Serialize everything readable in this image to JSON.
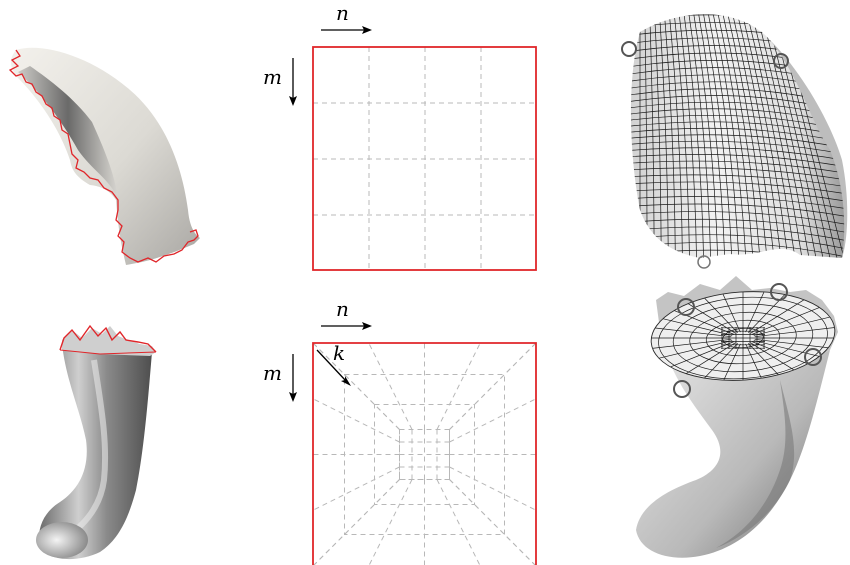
{
  "row_top": {
    "axis_labels": {
      "n": "n",
      "m": "m"
    },
    "grid_divisions": {
      "rows": 4,
      "cols": 4
    },
    "colors": {
      "boundary": "#e0262a",
      "grid": "#b8b8b8",
      "mesh": "#1a1a1a"
    }
  },
  "row_bottom": {
    "axis_labels": {
      "n": "n",
      "m": "m",
      "k": "k"
    },
    "grid_divisions": {
      "rings": 3,
      "spokes": 5
    },
    "colors": {
      "boundary": "#e0262a",
      "grid": "#b8b8b8",
      "mesh": "#1a1a1a"
    }
  }
}
